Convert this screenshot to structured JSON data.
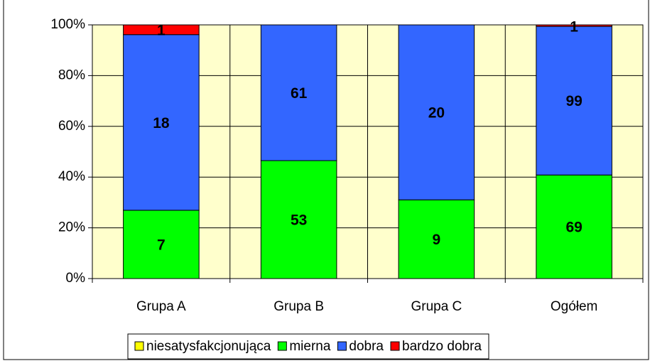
{
  "chart_data": {
    "type": "bar",
    "stacking": "percent",
    "categories": [
      "Grupa A",
      "Grupa B",
      "Grupa C",
      "Ogółem"
    ],
    "series": [
      {
        "name": "niesatysfakcjonująca",
        "color": "#ffff00",
        "values": [
          0,
          0,
          0,
          0
        ]
      },
      {
        "name": "mierna",
        "color": "#00ff00",
        "values": [
          7,
          53,
          9,
          69
        ]
      },
      {
        "name": "dobra",
        "color": "#3366ff",
        "values": [
          18,
          61,
          20,
          99
        ]
      },
      {
        "name": "bardzo dobra",
        "color": "#ff0000",
        "values": [
          1,
          0,
          0,
          1
        ]
      }
    ],
    "ylim": [
      0,
      100
    ],
    "yticks": [
      {
        "value": 0,
        "label": "0%"
      },
      {
        "value": 20,
        "label": "20%"
      },
      {
        "value": 40,
        "label": "40%"
      },
      {
        "value": 60,
        "label": "60%"
      },
      {
        "value": 80,
        "label": "80%"
      },
      {
        "value": 100,
        "label": "100%"
      }
    ],
    "grid": true,
    "legend": "bottom"
  }
}
